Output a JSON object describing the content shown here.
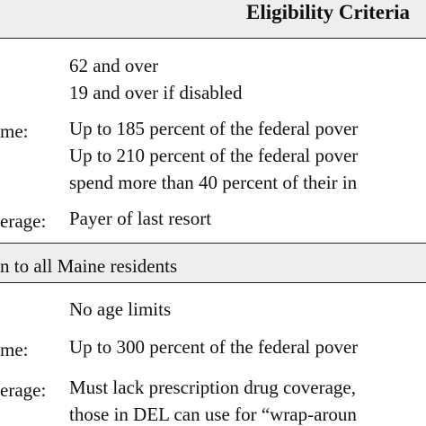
{
  "header": {
    "title": "Eligibility Criteria"
  },
  "rows": [
    {
      "label": "",
      "values": [
        "62 and over",
        "19 and over if disabled"
      ]
    },
    {
      "label": "me:",
      "values": [
        "Up to 185 percent of the federal pover",
        "Up to 210 percent of the federal pover",
        "spend more than 40 percent of their in"
      ]
    },
    {
      "label": "erage:",
      "values": [
        "Payer of last resort"
      ]
    },
    {
      "label": "",
      "values": [
        "No age limits"
      ]
    },
    {
      "label": "me:",
      "values": [
        "Up to 300 percent of the federal pover"
      ]
    },
    {
      "label": "erage:",
      "values": [
        "Must lack prescription drug coverage,",
        "those in DEL can use for “wrap-aroun"
      ]
    }
  ],
  "section": {
    "title": "n to all Maine residents"
  }
}
